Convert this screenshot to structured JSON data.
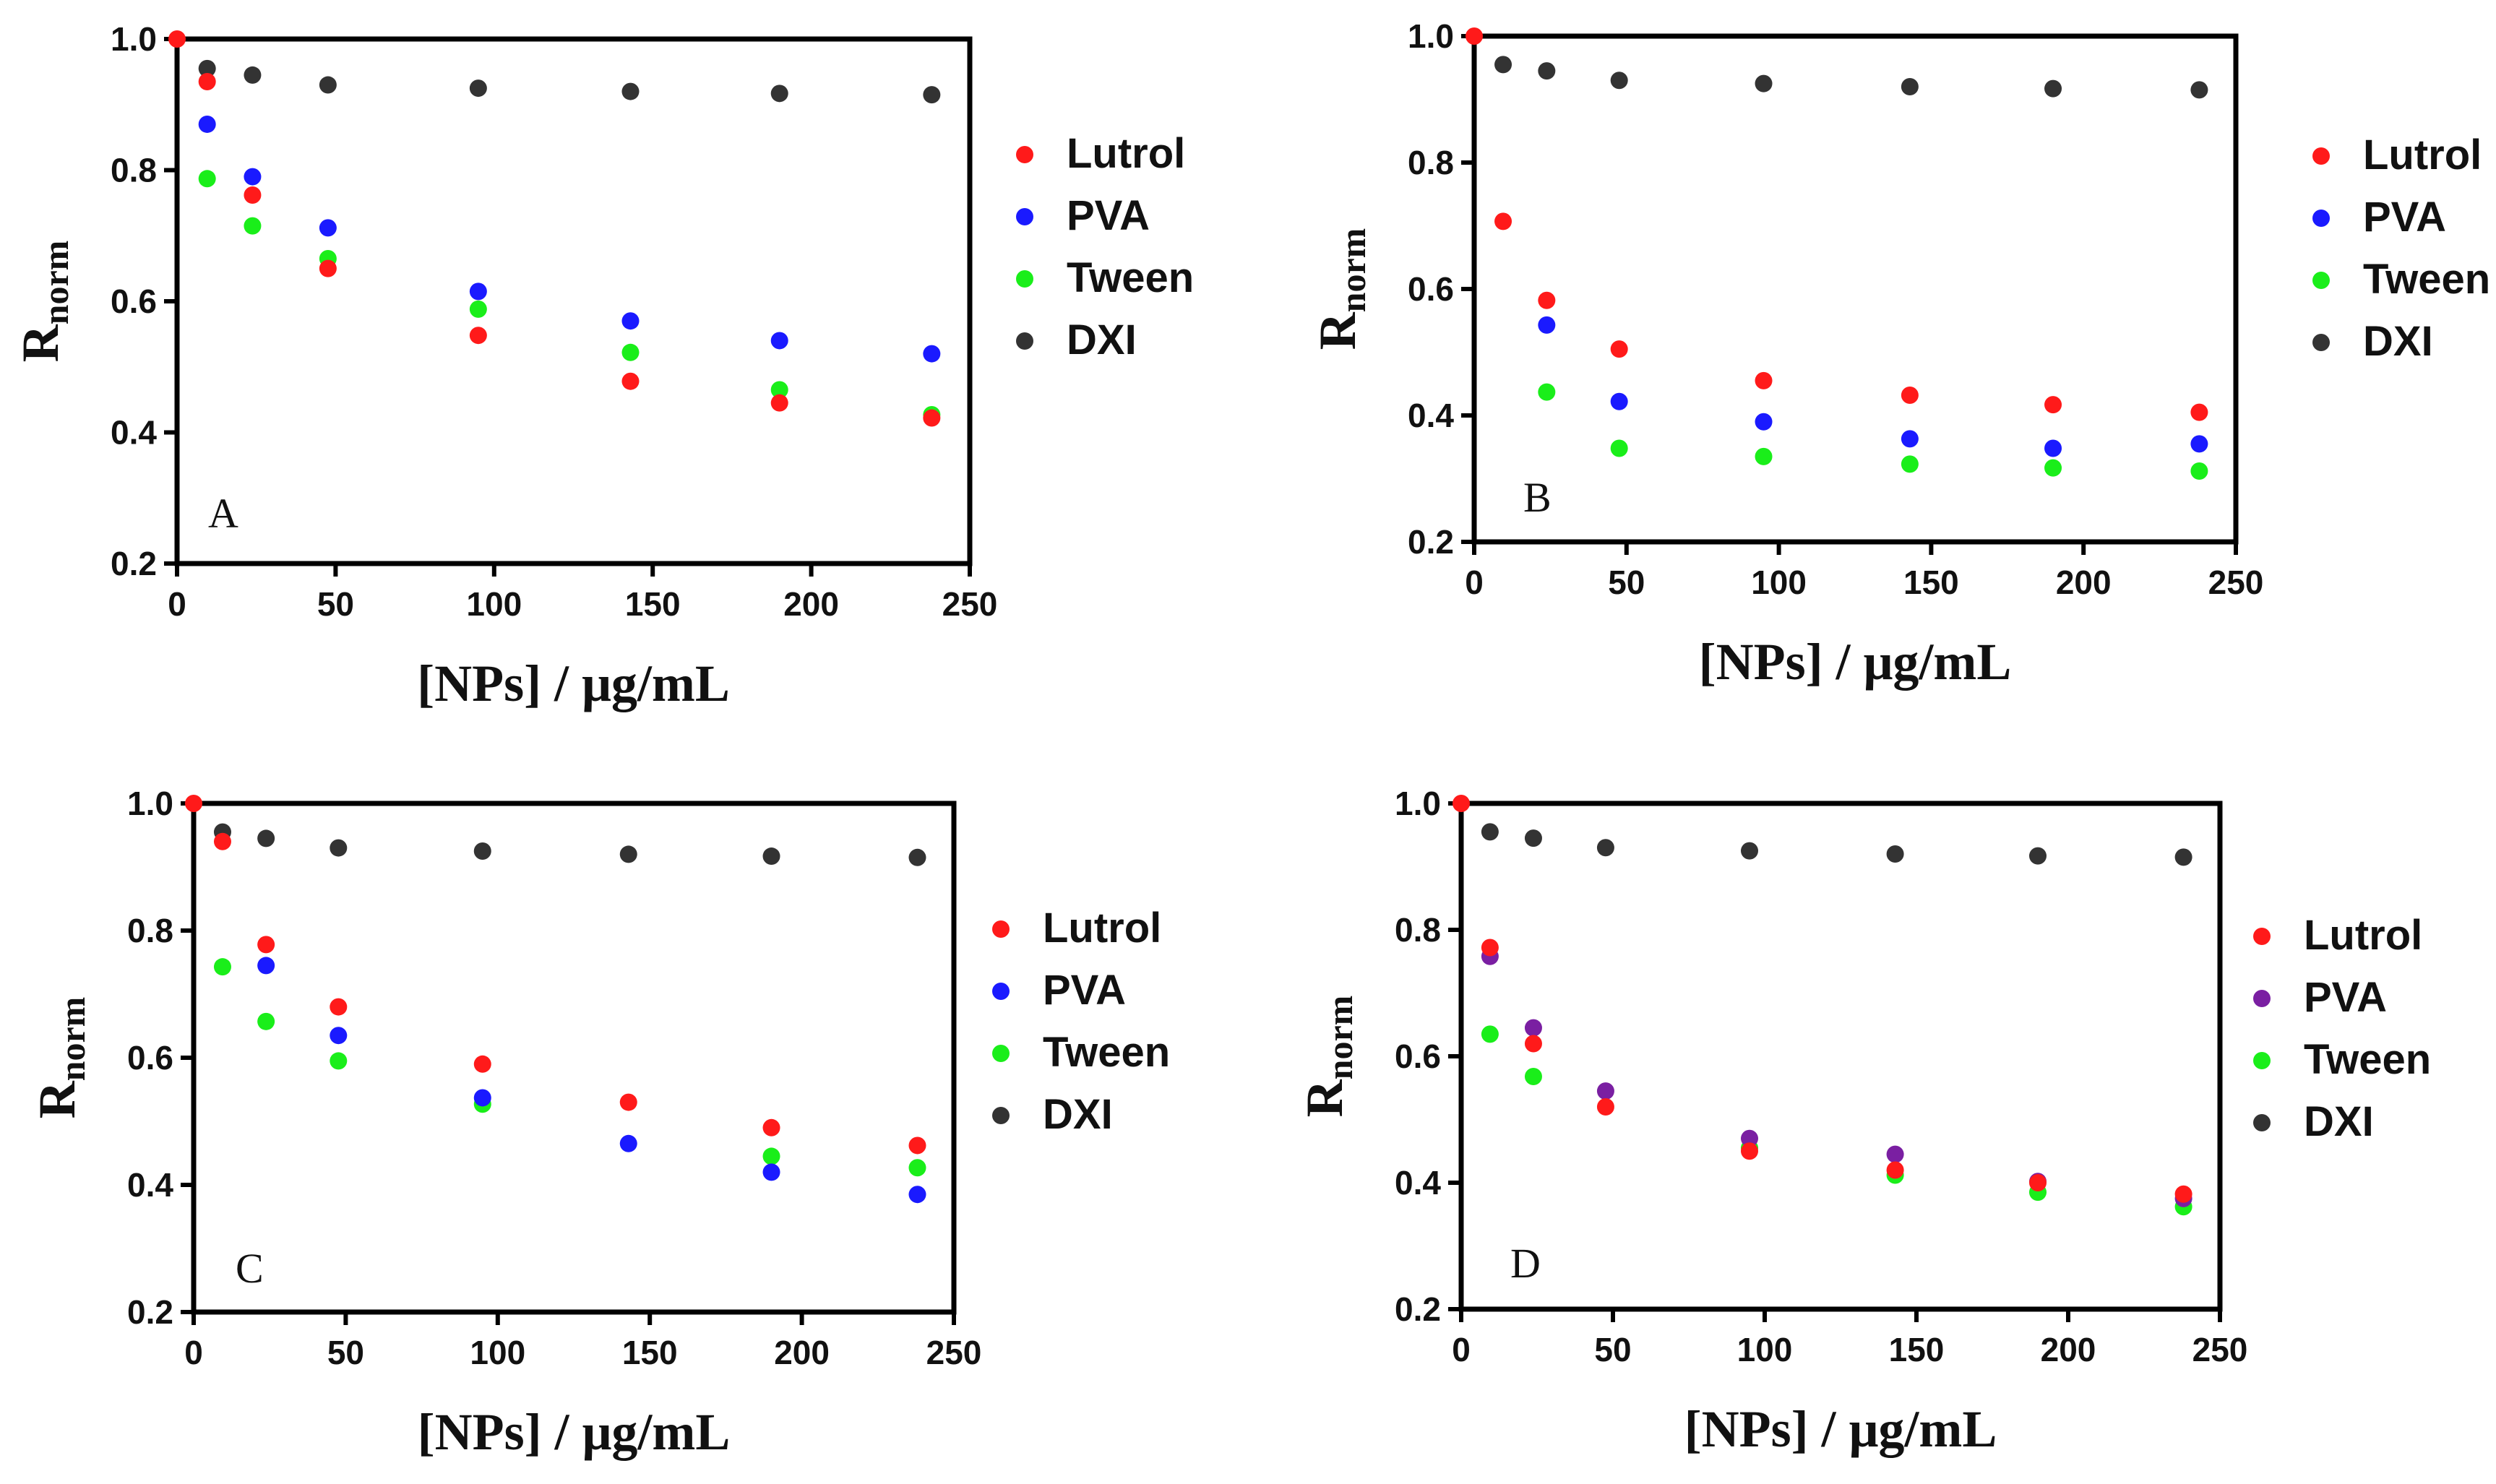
{
  "chart_data": [
    {
      "type": "scatter",
      "panel_label": "A",
      "xlabel": "[NPs] / μg/mL",
      "ylabel_main": "R",
      "ylabel_sub": "norm",
      "xlim": [
        0,
        250
      ],
      "ylim": [
        0.2,
        1.0
      ],
      "xticks": [
        "0",
        "50",
        "100",
        "150",
        "200",
        "250"
      ],
      "yticks": [
        "0.2",
        "0.4",
        "0.6",
        "0.8",
        "1.0"
      ],
      "legend_position": "right",
      "series": [
        {
          "name": "Lutrol",
          "color": "#ff1a1a",
          "x": [
            0,
            9.5,
            23.8,
            47.6,
            95,
            143,
            190,
            238
          ],
          "y": [
            1.0,
            0.935,
            0.762,
            0.65,
            0.548,
            0.478,
            0.445,
            0.422
          ]
        },
        {
          "name": "PVA",
          "color": "#1a1aff",
          "x": [
            9.5,
            23.8,
            47.6,
            95,
            143,
            190,
            238
          ],
          "y": [
            0.87,
            0.79,
            0.712,
            0.615,
            0.57,
            0.54,
            0.52
          ]
        },
        {
          "name": "Tween",
          "color": "#1aee1a",
          "x": [
            9.5,
            23.8,
            47.6,
            95,
            143,
            190,
            238
          ],
          "y": [
            0.787,
            0.715,
            0.665,
            0.588,
            0.522,
            0.465,
            0.427
          ]
        },
        {
          "name": "DXI",
          "color": "#333333",
          "x": [
            9.5,
            23.8,
            47.6,
            95,
            143,
            190,
            238
          ],
          "y": [
            0.955,
            0.945,
            0.93,
            0.925,
            0.92,
            0.917,
            0.915
          ]
        }
      ]
    },
    {
      "type": "scatter",
      "panel_label": "B",
      "xlabel": "[NPs] / μg/mL",
      "ylabel_main": "R",
      "ylabel_sub": "norm",
      "xlim": [
        0,
        250
      ],
      "ylim": [
        0.2,
        1.0
      ],
      "xticks": [
        "0",
        "50",
        "100",
        "150",
        "200",
        "250"
      ],
      "yticks": [
        "0.2",
        "0.4",
        "0.6",
        "0.8",
        "1.0"
      ],
      "legend_position": "right",
      "series": [
        {
          "name": "Lutrol",
          "color": "#ff1a1a",
          "x": [
            0,
            9.5,
            23.8,
            47.6,
            95,
            143,
            190,
            238
          ],
          "y": [
            1.0,
            0.707,
            0.582,
            0.505,
            0.455,
            0.432,
            0.417,
            0.405
          ]
        },
        {
          "name": "PVA",
          "color": "#1a1aff",
          "x": [
            23.8,
            47.6,
            95,
            143,
            190,
            238
          ],
          "y": [
            0.543,
            0.422,
            0.39,
            0.363,
            0.348,
            0.355
          ]
        },
        {
          "name": "Tween",
          "color": "#1aee1a",
          "x": [
            23.8,
            47.6,
            95,
            143,
            190,
            238
          ],
          "y": [
            0.437,
            0.348,
            0.335,
            0.323,
            0.317,
            0.312
          ]
        },
        {
          "name": "DXI",
          "color": "#333333",
          "x": [
            9.5,
            23.8,
            47.6,
            95,
            143,
            190,
            238
          ],
          "y": [
            0.955,
            0.945,
            0.93,
            0.925,
            0.92,
            0.917,
            0.915
          ]
        }
      ]
    },
    {
      "type": "scatter",
      "panel_label": "C",
      "xlabel": "[NPs] / μg/mL",
      "ylabel_main": "R",
      "ylabel_sub": "norm",
      "xlim": [
        0,
        250
      ],
      "ylim": [
        0.2,
        1.0
      ],
      "xticks": [
        "0",
        "50",
        "100",
        "150",
        "200",
        "250"
      ],
      "yticks": [
        "0.2",
        "0.4",
        "0.6",
        "0.8",
        "1.0"
      ],
      "legend_position": "right",
      "series": [
        {
          "name": "Lutrol",
          "color": "#ff1a1a",
          "x": [
            0,
            9.5,
            23.8,
            47.6,
            95,
            143,
            190,
            238
          ],
          "y": [
            1.0,
            0.94,
            0.778,
            0.68,
            0.59,
            0.53,
            0.49,
            0.462
          ]
        },
        {
          "name": "PVA",
          "color": "#1a1aff",
          "x": [
            23.8,
            47.6,
            95,
            143,
            190,
            238
          ],
          "y": [
            0.745,
            0.635,
            0.537,
            0.465,
            0.42,
            0.385
          ]
        },
        {
          "name": "Tween",
          "color": "#1aee1a",
          "x": [
            9.5,
            23.8,
            47.6,
            95,
            190,
            238
          ],
          "y": [
            0.743,
            0.657,
            0.595,
            0.527,
            0.445,
            0.427
          ]
        },
        {
          "name": "DXI",
          "color": "#333333",
          "x": [
            9.5,
            23.8,
            47.6,
            95,
            143,
            190,
            238
          ],
          "y": [
            0.955,
            0.945,
            0.93,
            0.925,
            0.92,
            0.917,
            0.915
          ]
        }
      ]
    },
    {
      "type": "scatter",
      "panel_label": "D",
      "xlabel": "[NPs] / μg/mL",
      "ylabel_main": "R",
      "ylabel_sub": "norm",
      "xlim": [
        0,
        250
      ],
      "ylim": [
        0.2,
        1.0
      ],
      "xticks": [
        "0",
        "50",
        "100",
        "150",
        "200",
        "250"
      ],
      "yticks": [
        "0.2",
        "0.4",
        "0.6",
        "0.8",
        "1.0"
      ],
      "legend_position": "right",
      "series": [
        {
          "name": "Lutrol",
          "color": "#ff1a1a",
          "x": [
            0,
            9.5,
            23.8,
            47.6,
            95,
            143,
            190,
            238
          ],
          "y": [
            1.0,
            0.772,
            0.62,
            0.52,
            0.45,
            0.42,
            0.4,
            0.382
          ]
        },
        {
          "name": "PVA",
          "color": "#7a1fa2",
          "x": [
            9.5,
            23.8,
            47.6,
            95,
            143,
            190,
            238
          ],
          "y": [
            0.758,
            0.645,
            0.545,
            0.47,
            0.445,
            0.402,
            0.375
          ]
        },
        {
          "name": "Tween",
          "color": "#1aee1a",
          "x": [
            9.5,
            23.8,
            95,
            143,
            190,
            238
          ],
          "y": [
            0.635,
            0.568,
            0.455,
            0.412,
            0.385,
            0.362
          ]
        },
        {
          "name": "DXI",
          "color": "#333333",
          "x": [
            9.5,
            23.8,
            47.6,
            95,
            143,
            190,
            238
          ],
          "y": [
            0.955,
            0.945,
            0.93,
            0.925,
            0.92,
            0.917,
            0.915
          ]
        }
      ]
    }
  ]
}
